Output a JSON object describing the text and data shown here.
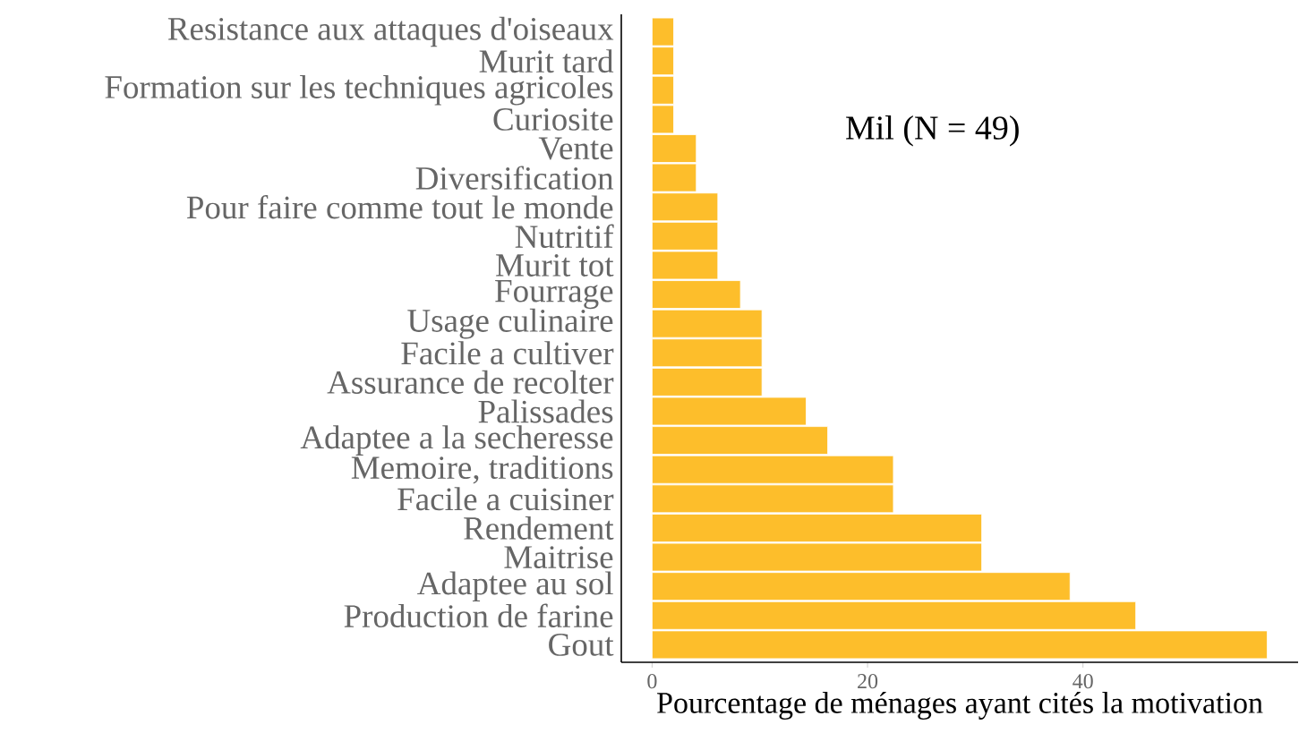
{
  "chart_data": {
    "type": "bar",
    "orientation": "horizontal",
    "categories": [
      "Resistance aux attaques d'oiseaux",
      "Murit tard",
      "Formation sur les techniques agricoles",
      "Curiosite",
      "Vente",
      "Diversification",
      "Pour faire comme tout le monde",
      "Nutritif",
      "Murit tot",
      "Fourrage",
      "Usage culinaire",
      "Facile a cultiver",
      "Assurance de recolter",
      "Palissades",
      "Adaptee a la secheresse",
      "Memoire, traditions",
      "Facile a cuisiner",
      "Rendement",
      "Maitrise",
      "Adaptee au sol",
      "Production de farine",
      "Gout"
    ],
    "values": [
      2.0,
      2.0,
      2.0,
      2.0,
      4.1,
      4.1,
      6.1,
      6.1,
      6.1,
      8.2,
      10.2,
      10.2,
      10.2,
      14.3,
      16.3,
      22.4,
      22.4,
      30.6,
      30.6,
      38.8,
      44.9,
      57.1
    ],
    "color": "#fdbe2b",
    "xlabel": "Pourcentage de ménages ayant cités la motivation",
    "annotations": [
      "Mil (N = 49)"
    ],
    "xlim": [
      -2.86,
      59.97
    ],
    "xticks": [
      0,
      20,
      40
    ],
    "grid": false
  }
}
